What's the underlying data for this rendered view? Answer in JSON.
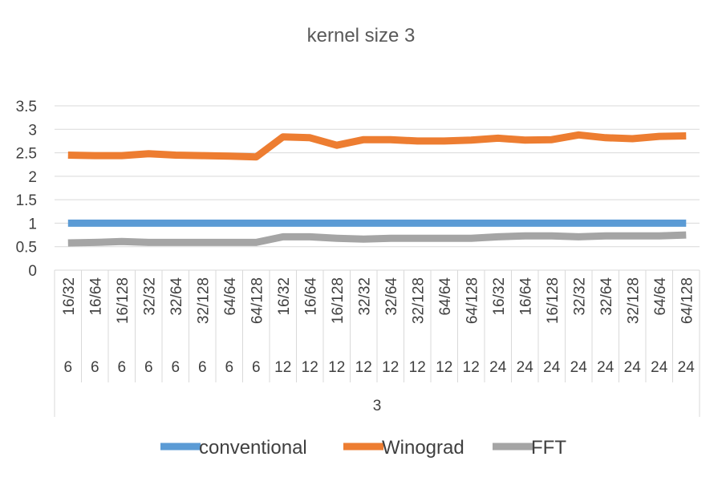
{
  "chart_data": {
    "type": "line",
    "title": "kernel size 3",
    "xlabel": "",
    "ylabel": "",
    "ylim": [
      0,
      3.5
    ],
    "yticks": [
      "0",
      "0.5",
      "1",
      "1.5",
      "2",
      "2.5",
      "3",
      "3.5"
    ],
    "grid": true,
    "legend_position": "bottom",
    "categories": [
      "16/32",
      "16/64",
      "16/128",
      "32/32",
      "32/64",
      "32/128",
      "64/64",
      "64/128",
      "16/32",
      "16/64",
      "16/128",
      "32/32",
      "32/64",
      "32/128",
      "64/64",
      "64/128",
      "16/32",
      "16/64",
      "16/128",
      "32/32",
      "32/64",
      "32/128",
      "64/64",
      "64/128"
    ],
    "group_labels": [
      "6",
      "6",
      "6",
      "6",
      "6",
      "6",
      "6",
      "6",
      "12",
      "12",
      "12",
      "12",
      "12",
      "12",
      "12",
      "12",
      "24",
      "24",
      "24",
      "24",
      "24",
      "24",
      "24",
      "24"
    ],
    "top_group_label": "3",
    "series": [
      {
        "name": "conventional",
        "color": "#5B9BD5",
        "values": [
          1,
          1,
          1,
          1,
          1,
          1,
          1,
          1,
          1,
          1,
          1,
          1,
          1,
          1,
          1,
          1,
          1,
          1,
          1,
          1,
          1,
          1,
          1,
          1
        ]
      },
      {
        "name": "Winograd",
        "color": "#ED7D31",
        "values": [
          2.45,
          2.44,
          2.44,
          2.48,
          2.45,
          2.44,
          2.43,
          2.41,
          2.84,
          2.82,
          2.66,
          2.78,
          2.78,
          2.75,
          2.75,
          2.77,
          2.81,
          2.77,
          2.78,
          2.88,
          2.82,
          2.8,
          2.85,
          2.86
        ]
      },
      {
        "name": "FFT",
        "color": "#A5A5A5",
        "values": [
          0.58,
          0.59,
          0.61,
          0.59,
          0.59,
          0.59,
          0.59,
          0.59,
          0.71,
          0.71,
          0.68,
          0.66,
          0.68,
          0.68,
          0.68,
          0.68,
          0.71,
          0.73,
          0.73,
          0.71,
          0.73,
          0.73,
          0.73,
          0.75
        ]
      }
    ]
  }
}
